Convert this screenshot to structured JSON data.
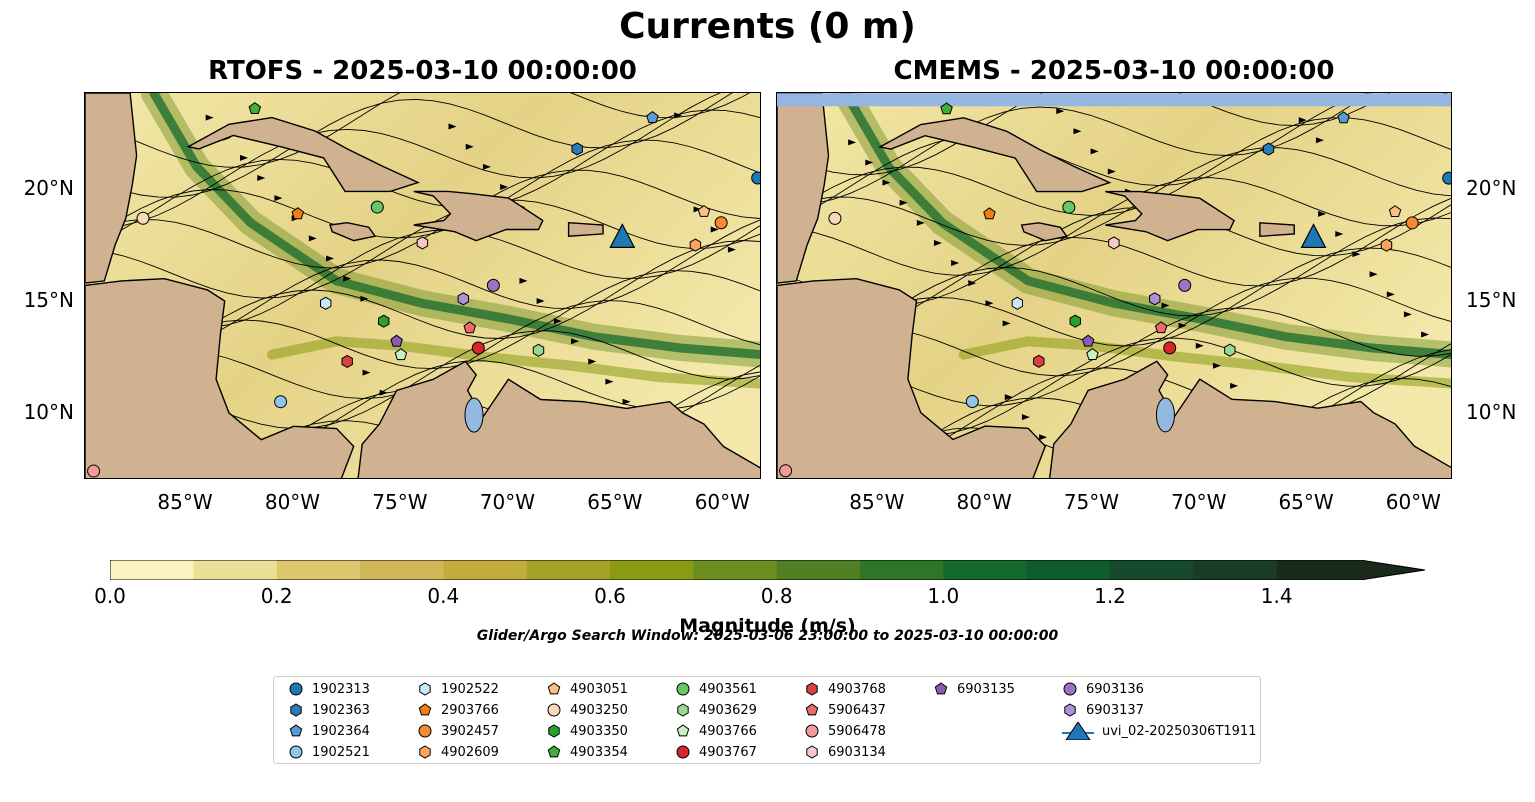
{
  "figure": {
    "title": "Currents (0 m)",
    "search_window": "Glider/Argo Search Window: 2025-03-06 23:00:00 to 2025-03-10 00:00:00"
  },
  "panels": [
    {
      "title": "RTOFS - 2025-03-10 00:00:00"
    },
    {
      "title": "CMEMS - 2025-03-10 00:00:00"
    }
  ],
  "axes": {
    "lon_ticks": [
      "85°W",
      "80°W",
      "75°W",
      "70°W",
      "65°W",
      "60°W"
    ],
    "lon_values": [
      -85,
      -80,
      -75,
      -70,
      -65,
      -60
    ],
    "lat_ticks": [
      "20°N",
      "15°N",
      "10°N"
    ],
    "lat_values": [
      20,
      15,
      10
    ],
    "lon_range": [
      -89.7,
      -58.2
    ],
    "lat_range": [
      7.0,
      24.3
    ]
  },
  "colorbar": {
    "label": "Magnitude (m/s)",
    "ticks": [
      "0.0",
      "0.2",
      "0.4",
      "0.6",
      "0.8",
      "1.0",
      "1.2",
      "1.4"
    ],
    "tick_values": [
      0.0,
      0.2,
      0.4,
      0.6,
      0.8,
      1.0,
      1.2,
      1.4
    ],
    "range": [
      0,
      1.5
    ],
    "extend": "max",
    "colors": [
      "#fbf3bd",
      "#ece099",
      "#ddc66e",
      "#d2b758",
      "#c3ac3c",
      "#a7a228",
      "#8a9a14",
      "#6c8e1e",
      "#4f8024",
      "#2f7526",
      "#15692c",
      "#0f5d2e",
      "#164a2c",
      "#1a3b25",
      "#19291a"
    ]
  },
  "legend": {
    "items": [
      {
        "label": "1902313",
        "color": "#1f77b4",
        "marker": "circle"
      },
      {
        "label": "1902363",
        "color": "#2b7bba",
        "marker": "hexagon"
      },
      {
        "label": "1902364",
        "color": "#5a9bd4",
        "marker": "pentagon"
      },
      {
        "label": "1902521",
        "color": "#8ec6ea",
        "marker": "circle"
      },
      {
        "label": "1902522",
        "color": "#c9e8fa",
        "marker": "hexagon"
      },
      {
        "label": "2903766",
        "color": "#f07f12",
        "marker": "pentagon"
      },
      {
        "label": "3902457",
        "color": "#f78b34",
        "marker": "circle"
      },
      {
        "label": "4902609",
        "color": "#f9a55e",
        "marker": "hexagon"
      },
      {
        "label": "4903051",
        "color": "#fbbf86",
        "marker": "pentagon"
      },
      {
        "label": "4903250",
        "color": "#fcd9b5",
        "marker": "circle"
      },
      {
        "label": "4903350",
        "color": "#2ca02c",
        "marker": "hexagon"
      },
      {
        "label": "4903354",
        "color": "#3fb03a",
        "marker": "pentagon"
      },
      {
        "label": "4903561",
        "color": "#66c766",
        "marker": "circle"
      },
      {
        "label": "4903629",
        "color": "#96da8f",
        "marker": "hexagon"
      },
      {
        "label": "4903766",
        "color": "#c7f2c0",
        "marker": "pentagon"
      },
      {
        "label": "4903767",
        "color": "#d62728",
        "marker": "circle"
      },
      {
        "label": "4903768",
        "color": "#d94040",
        "marker": "hexagon"
      },
      {
        "label": "5906437",
        "color": "#ec6a6a",
        "marker": "pentagon"
      },
      {
        "label": "5906478",
        "color": "#f29a9a",
        "marker": "circle"
      },
      {
        "label": "6903134",
        "color": "#f9c7c7",
        "marker": "hexagon"
      },
      {
        "label": "6903135",
        "color": "#8c5ab4",
        "marker": "pentagon"
      },
      {
        "label": "6903136",
        "color": "#9b72c4",
        "marker": "circle"
      },
      {
        "label": "6903137",
        "color": "#b08fd4",
        "marker": "hexagon"
      },
      {
        "label": "uvi_02-20250306T1911",
        "color": "#1f77b4",
        "marker": "triangle"
      }
    ]
  },
  "glider": {
    "name": "uvi_02-20250306T1911",
    "lon": -64.7,
    "lat": 17.8
  },
  "floats": [
    {
      "id": "1902313",
      "lon": -58.4,
      "lat": 20.5
    },
    {
      "id": "1902363",
      "lon": -66.8,
      "lat": 21.8
    },
    {
      "id": "1902364",
      "lon": -63.3,
      "lat": 23.2
    },
    {
      "id": "1902521",
      "lon": -80.6,
      "lat": 10.5
    },
    {
      "id": "1902522",
      "lon": -78.5,
      "lat": 14.9
    },
    {
      "id": "2903766",
      "lon": -79.8,
      "lat": 18.9
    },
    {
      "id": "3902457",
      "lon": -60.1,
      "lat": 18.5
    },
    {
      "id": "4902609",
      "lon": -61.3,
      "lat": 17.5
    },
    {
      "id": "4903051",
      "lon": -60.9,
      "lat": 19.0
    },
    {
      "id": "4903250",
      "lon": -87.0,
      "lat": 18.7
    },
    {
      "id": "4903350",
      "lon": -75.8,
      "lat": 14.1
    },
    {
      "id": "4903354",
      "lon": -81.8,
      "lat": 23.6
    },
    {
      "id": "4903561",
      "lon": -76.1,
      "lat": 19.2
    },
    {
      "id": "4903629",
      "lon": -68.6,
      "lat": 12.8
    },
    {
      "id": "4903766",
      "lon": -75.0,
      "lat": 12.6
    },
    {
      "id": "4903767",
      "lon": -71.4,
      "lat": 12.9
    },
    {
      "id": "4903768",
      "lon": -77.5,
      "lat": 12.3
    },
    {
      "id": "5906437",
      "lon": -71.8,
      "lat": 13.8
    },
    {
      "id": "5906478",
      "lon": -89.3,
      "lat": 7.4
    },
    {
      "id": "6903134",
      "lon": -74.0,
      "lat": 17.6
    },
    {
      "id": "6903135",
      "lon": -75.2,
      "lat": 13.2
    },
    {
      "id": "6903136",
      "lon": -70.7,
      "lat": 15.7
    },
    {
      "id": "6903137",
      "lon": -72.1,
      "lat": 15.1
    }
  ]
}
